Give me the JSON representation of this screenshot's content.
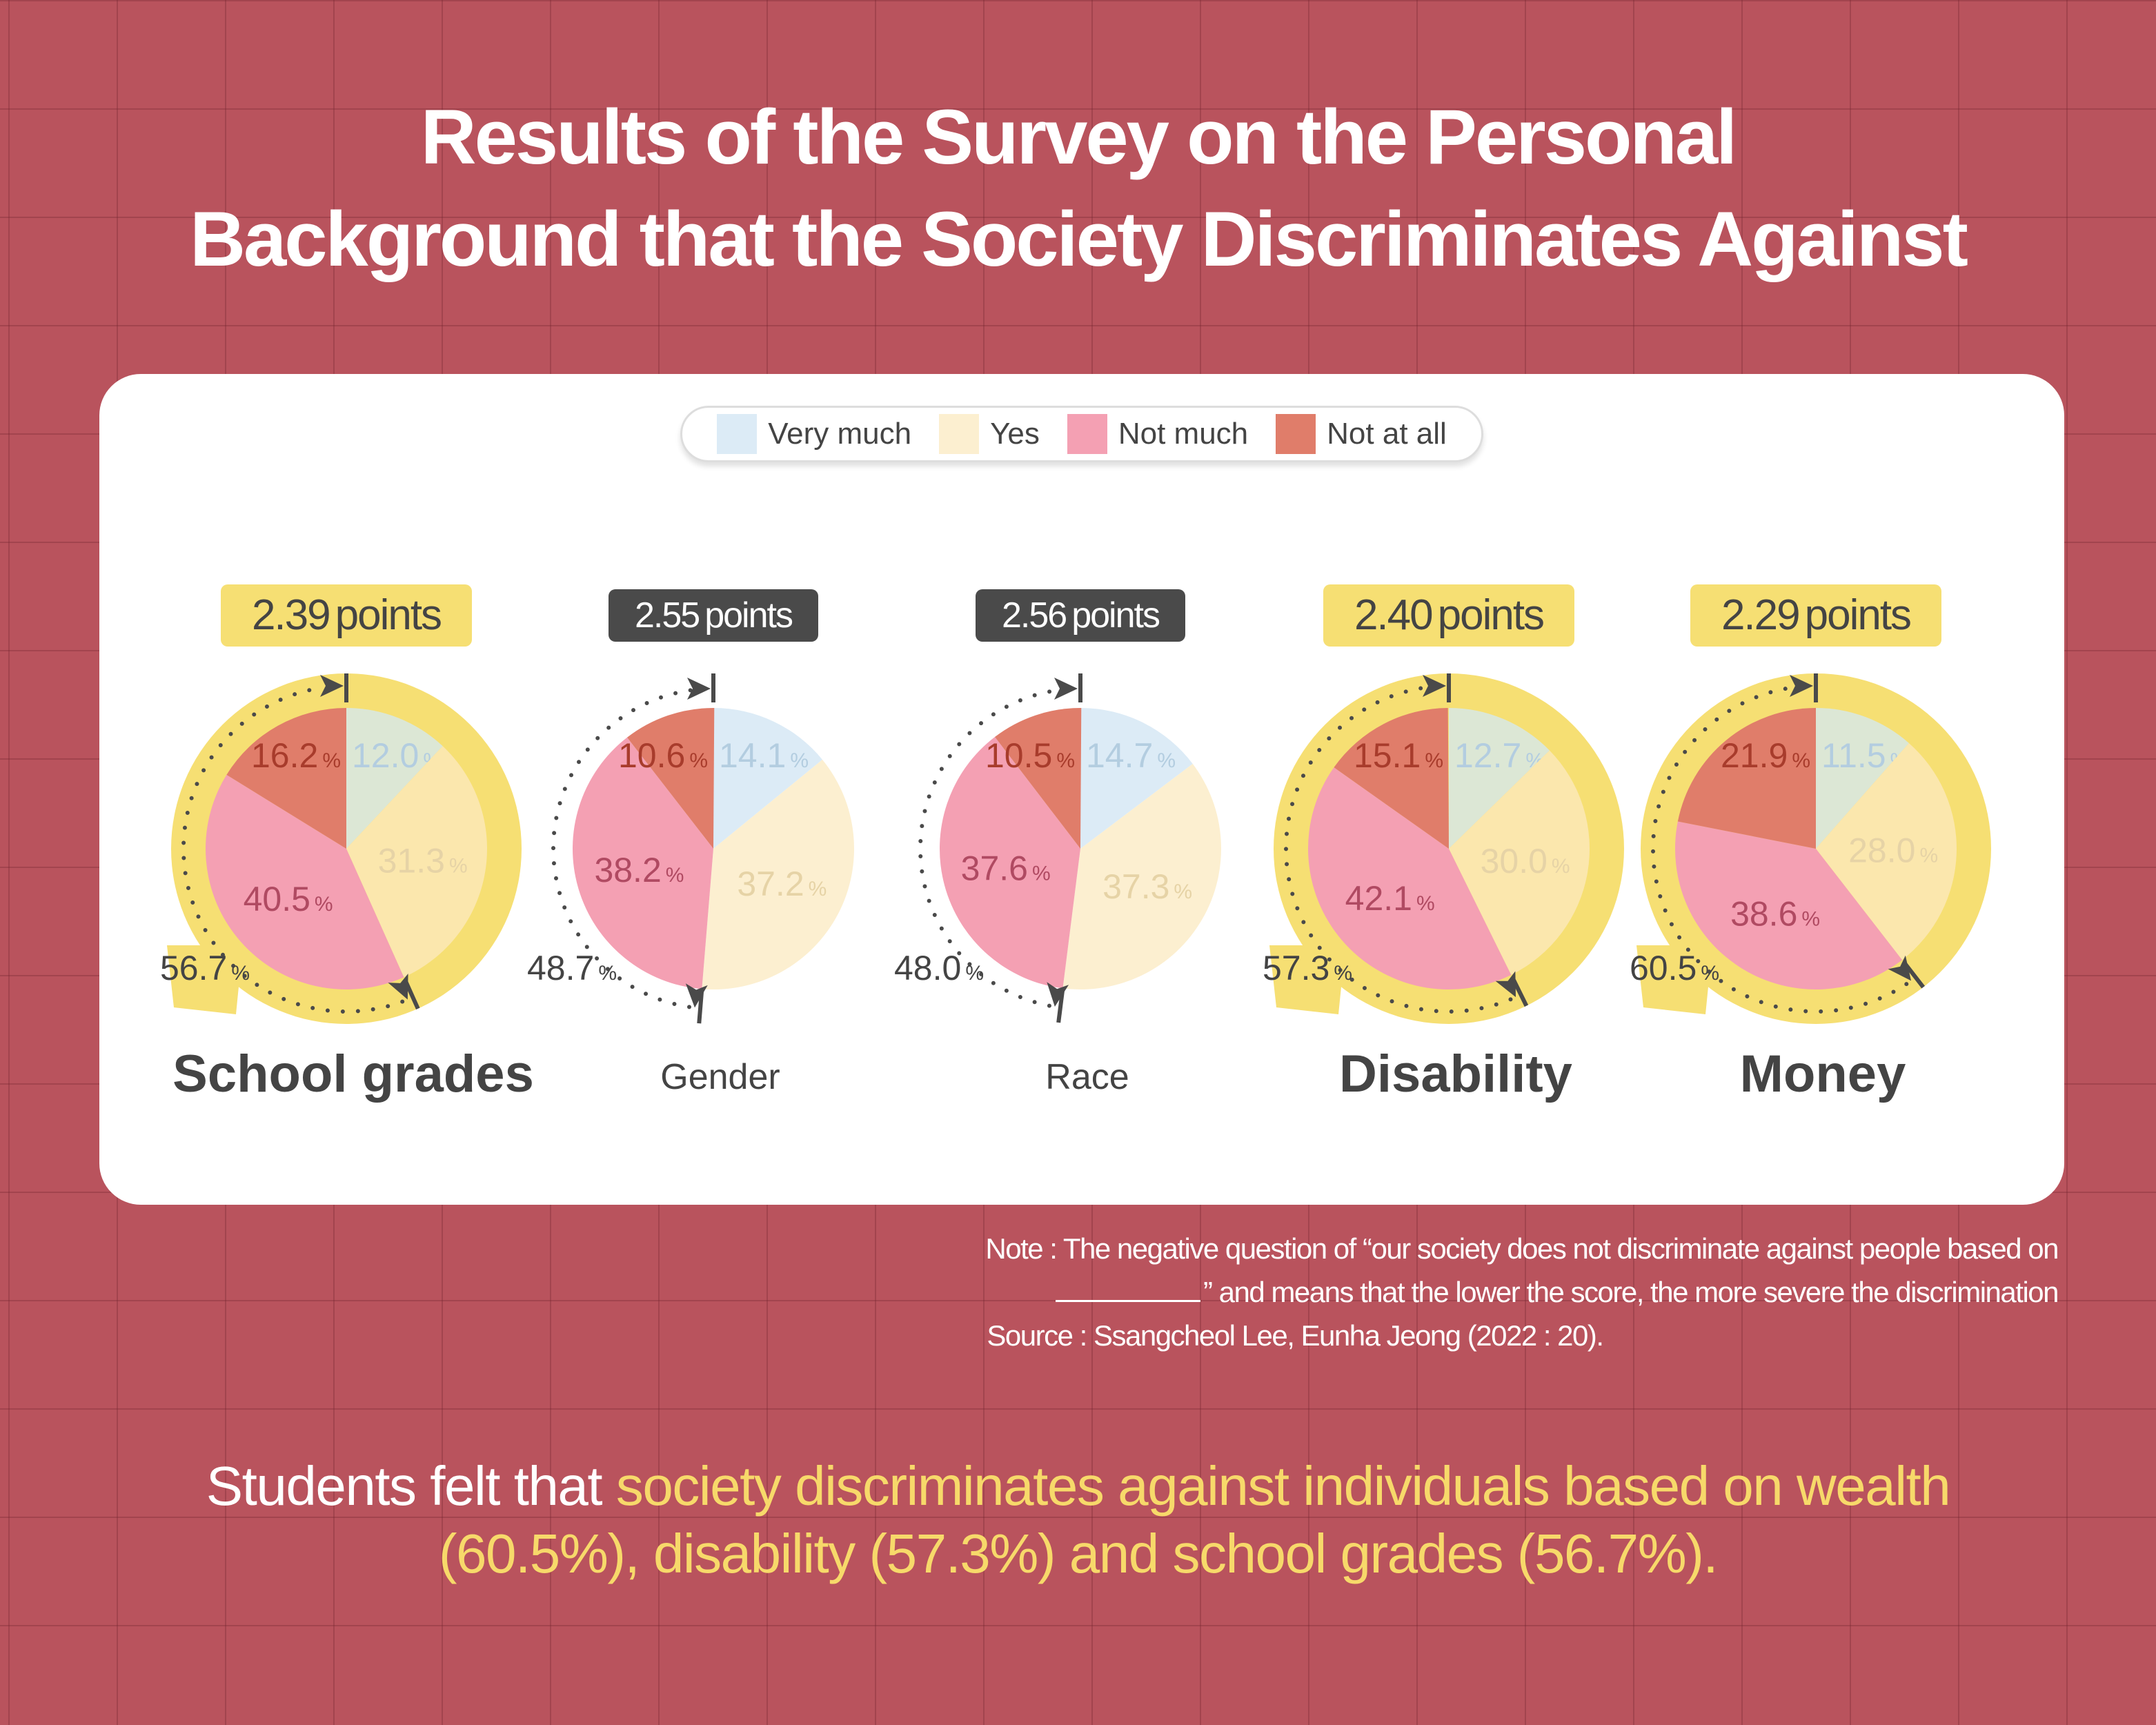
{
  "title": {
    "line1": "Results of the Survey on the Personal",
    "line2": "Background that the Society Discriminates Against"
  },
  "legend": [
    {
      "label": "Very much",
      "color": "#dcebf6"
    },
    {
      "label": "Yes",
      "color": "#fcefd0"
    },
    {
      "label": "Not much",
      "color": "#f4a0b3"
    },
    {
      "label": "Not at all",
      "color": "#e07d6a"
    }
  ],
  "chart_data": {
    "type": "pie",
    "categories": [
      "Very much",
      "Yes",
      "Not much",
      "Not at all"
    ],
    "charts": [
      {
        "label": "School grades",
        "points": "2.39",
        "points_unit": "points",
        "highlight": true,
        "values": [
          12.0,
          31.3,
          40.5,
          16.2
        ],
        "negative_total": 56.7
      },
      {
        "label": "Gender",
        "points": "2.55",
        "points_unit": "points",
        "highlight": false,
        "values": [
          14.1,
          37.2,
          38.2,
          10.6
        ],
        "negative_total": 48.7
      },
      {
        "label": "Race",
        "points": "2.56",
        "points_unit": "points",
        "highlight": false,
        "values": [
          14.7,
          37.3,
          37.6,
          10.5
        ],
        "negative_total": 48.0
      },
      {
        "label": "Disability",
        "points": "2.40",
        "points_unit": "points",
        "highlight": true,
        "values": [
          12.7,
          30.0,
          42.1,
          15.1
        ],
        "negative_total": 57.3
      },
      {
        "label": "Money",
        "points": "2.29",
        "points_unit": "points",
        "highlight": true,
        "values": [
          11.5,
          28.0,
          38.6,
          21.9
        ],
        "negative_total": 60.5
      }
    ],
    "colors": {
      "highlight_ring": "#f6df73",
      "badge_dark": "#4a4a4a",
      "label_colors": [
        "#b3cde0",
        "#e6d3a6",
        "#b04a62",
        "#a83c2c"
      ]
    }
  },
  "note": {
    "line1": "Note : The negative question of “our society does not discriminate against people based on",
    "line2": "” and means that the lower the score, the more severe the discrimination",
    "source": "Source : Ssangcheol Lee, Eunha Jeong (2022 : 20)."
  },
  "conclusion": {
    "plain": "Students felt that ",
    "highlight1": "society discriminates against individuals based on wealth",
    "highlight2": "(60.5%), disability (57.3%) and school grades (56.7%)."
  }
}
